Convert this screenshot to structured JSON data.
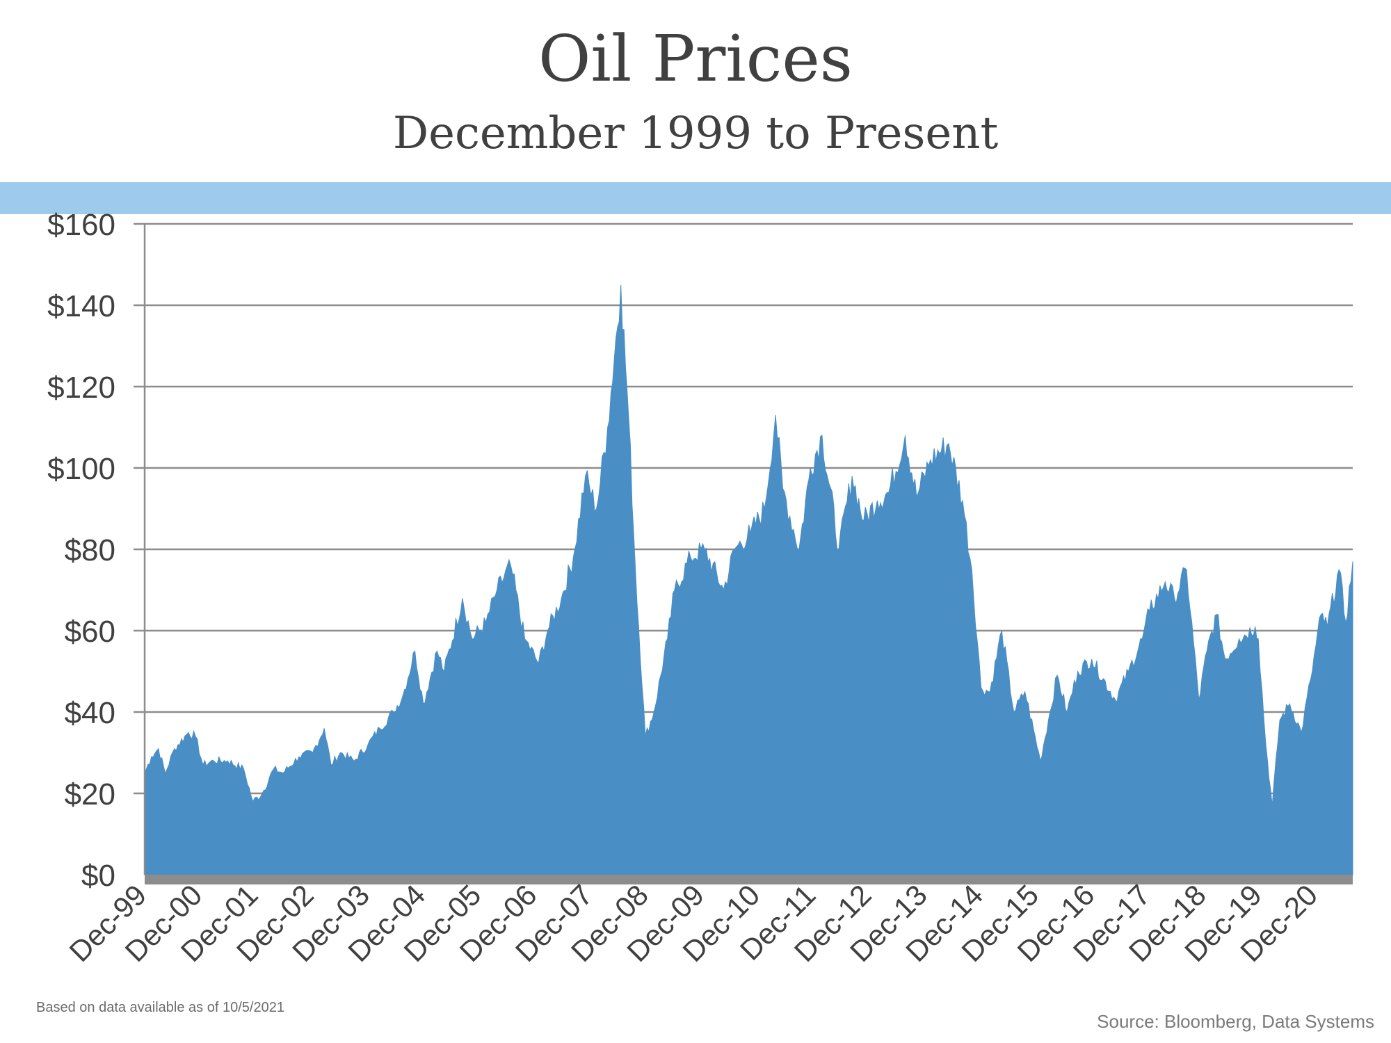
{
  "header": {
    "title": "Oil Prices",
    "subtitle": "December 1999 to Present"
  },
  "footer": {
    "note": "Based on data available as of 10/5/2021",
    "source": "Source:  Bloomberg, Data Systems"
  },
  "colors": {
    "area": "#4a8ec6",
    "band": "#9ecbeb",
    "grid": "#8c8c8c",
    "baseline": "#8c8c8c",
    "text": "#404040"
  },
  "chart_data": {
    "type": "area",
    "title": "Oil Prices",
    "subtitle": "December 1999 to Present",
    "xlabel": "",
    "ylabel": "",
    "ylim": [
      0,
      160
    ],
    "yticks": [
      "$0",
      "$20",
      "$40",
      "$60",
      "$80",
      "$100",
      "$120",
      "$140",
      "$160"
    ],
    "xticks": [
      "Dec-99",
      "Dec-00",
      "Dec-01",
      "Dec-02",
      "Dec-03",
      "Dec-04",
      "Dec-05",
      "Dec-06",
      "Dec-07",
      "Dec-08",
      "Dec-09",
      "Dec-10",
      "Dec-11",
      "Dec-12",
      "Dec-13",
      "Dec-14",
      "Dec-15",
      "Dec-16",
      "Dec-17",
      "Dec-18",
      "Dec-19",
      "Dec-20"
    ],
    "grid": true,
    "legend": "none",
    "x_range": [
      "1999-12-01",
      "2021-10-05"
    ],
    "series": [
      {
        "points": [
          [
            "1999-12-01",
            25
          ],
          [
            "2000-01-15",
            29
          ],
          [
            "2000-03-01",
            31
          ],
          [
            "2000-04-15",
            25
          ],
          [
            "2000-06-15",
            31
          ],
          [
            "2000-09-15",
            35
          ],
          [
            "2000-11-01",
            34
          ],
          [
            "2000-12-20",
            27
          ],
          [
            "2001-03-01",
            28
          ],
          [
            "2001-06-01",
            28
          ],
          [
            "2001-09-15",
            26
          ],
          [
            "2001-11-15",
            18
          ],
          [
            "2002-01-15",
            20
          ],
          [
            "2002-04-01",
            26
          ],
          [
            "2002-06-01",
            25
          ],
          [
            "2002-09-15",
            29
          ],
          [
            "2002-12-15",
            30
          ],
          [
            "2003-03-01",
            36
          ],
          [
            "2003-04-15",
            27
          ],
          [
            "2003-06-15",
            30
          ],
          [
            "2003-09-15",
            28
          ],
          [
            "2003-12-15",
            32
          ],
          [
            "2004-03-01",
            36
          ],
          [
            "2004-06-01",
            40
          ],
          [
            "2004-08-01",
            44
          ],
          [
            "2004-10-20",
            55
          ],
          [
            "2004-12-15",
            42
          ],
          [
            "2005-03-15",
            55
          ],
          [
            "2005-05-01",
            50
          ],
          [
            "2005-08-30",
            68
          ],
          [
            "2005-11-01",
            58
          ],
          [
            "2006-02-01",
            62
          ],
          [
            "2006-04-15",
            70
          ],
          [
            "2006-07-15",
            76
          ],
          [
            "2006-10-15",
            58
          ],
          [
            "2007-01-15",
            52
          ],
          [
            "2007-03-15",
            60
          ],
          [
            "2007-06-15",
            68
          ],
          [
            "2007-09-01",
            78
          ],
          [
            "2007-11-20",
            98
          ],
          [
            "2008-02-01",
            90
          ],
          [
            "2008-04-15",
            110
          ],
          [
            "2008-07-11",
            145
          ],
          [
            "2008-09-01",
            112
          ],
          [
            "2008-10-15",
            75
          ],
          [
            "2008-12-20",
            34
          ],
          [
            "2009-02-15",
            40
          ],
          [
            "2009-05-15",
            58
          ],
          [
            "2009-07-01",
            70
          ],
          [
            "2009-10-15",
            78
          ],
          [
            "2010-01-15",
            80
          ],
          [
            "2010-05-20",
            70
          ],
          [
            "2010-08-01",
            80
          ],
          [
            "2010-11-15",
            84
          ],
          [
            "2011-02-15",
            90
          ],
          [
            "2011-04-29",
            113
          ],
          [
            "2011-06-15",
            95
          ],
          [
            "2011-10-01",
            80
          ],
          [
            "2011-12-15",
            100
          ],
          [
            "2012-03-01",
            108
          ],
          [
            "2012-06-20",
            80
          ],
          [
            "2012-09-15",
            98
          ],
          [
            "2012-12-01",
            87
          ],
          [
            "2013-03-01",
            92
          ],
          [
            "2013-05-15",
            94
          ],
          [
            "2013-09-01",
            108
          ],
          [
            "2013-11-15",
            93
          ],
          [
            "2014-02-15",
            102
          ],
          [
            "2014-06-15",
            106
          ],
          [
            "2014-09-15",
            92
          ],
          [
            "2014-11-15",
            75
          ],
          [
            "2015-01-15",
            46
          ],
          [
            "2015-03-15",
            45
          ],
          [
            "2015-06-01",
            60
          ],
          [
            "2015-08-20",
            40
          ],
          [
            "2015-11-01",
            45
          ],
          [
            "2016-02-11",
            28
          ],
          [
            "2016-04-15",
            40
          ],
          [
            "2016-06-01",
            49
          ],
          [
            "2016-08-05",
            40
          ],
          [
            "2016-10-15",
            50
          ],
          [
            "2017-01-15",
            53
          ],
          [
            "2017-06-20",
            43
          ],
          [
            "2017-09-15",
            50
          ],
          [
            "2017-12-15",
            58
          ],
          [
            "2018-02-01",
            65
          ],
          [
            "2018-05-15",
            72
          ],
          [
            "2018-07-15",
            68
          ],
          [
            "2018-10-03",
            75
          ],
          [
            "2018-12-24",
            43
          ],
          [
            "2019-02-15",
            55
          ],
          [
            "2019-04-20",
            64
          ],
          [
            "2019-06-15",
            53
          ],
          [
            "2019-09-15",
            58
          ],
          [
            "2019-12-31",
            61
          ],
          [
            "2020-01-20",
            58
          ],
          [
            "2020-03-10",
            32
          ],
          [
            "2020-04-21",
            17
          ],
          [
            "2020-06-10",
            38
          ],
          [
            "2020-08-15",
            42
          ],
          [
            "2020-10-30",
            35
          ],
          [
            "2020-12-31",
            48
          ],
          [
            "2021-03-10",
            64
          ],
          [
            "2021-04-20",
            61
          ],
          [
            "2021-07-06",
            75
          ],
          [
            "2021-08-20",
            62
          ],
          [
            "2021-10-05",
            77
          ]
        ]
      }
    ]
  }
}
